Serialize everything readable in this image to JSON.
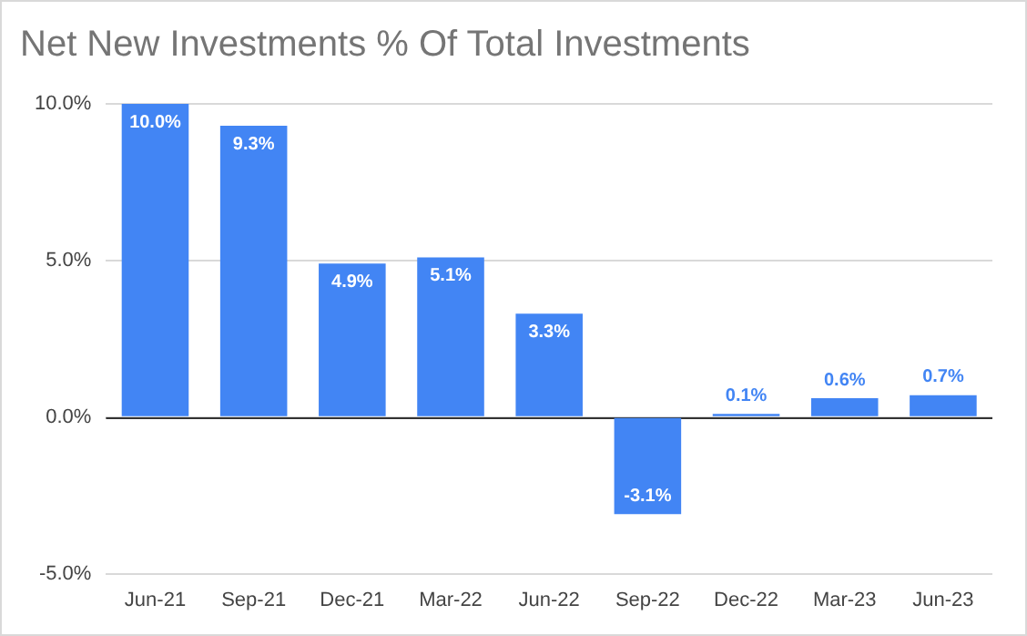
{
  "chart_data": {
    "type": "bar",
    "title": "Net New Investments % Of Total Investments",
    "categories": [
      "Jun-21",
      "Sep-21",
      "Dec-21",
      "Mar-22",
      "Jun-22",
      "Sep-22",
      "Dec-22",
      "Mar-23",
      "Jun-23"
    ],
    "values": [
      10.0,
      9.3,
      4.9,
      5.1,
      3.3,
      -3.1,
      0.1,
      0.6,
      0.7
    ],
    "value_labels": [
      "10.0%",
      "9.3%",
      "4.9%",
      "5.1%",
      "3.3%",
      "-3.1%",
      "0.1%",
      "0.6%",
      "0.7%"
    ],
    "color": "#4285f4",
    "ylim": [
      -5,
      10
    ],
    "yticks": [
      {
        "value": -5,
        "label": "-5.0%"
      },
      {
        "value": 0,
        "label": "0.0%"
      },
      {
        "value": 5,
        "label": "5.0%"
      },
      {
        "value": 10,
        "label": "10.0%"
      }
    ],
    "grid": "y"
  }
}
